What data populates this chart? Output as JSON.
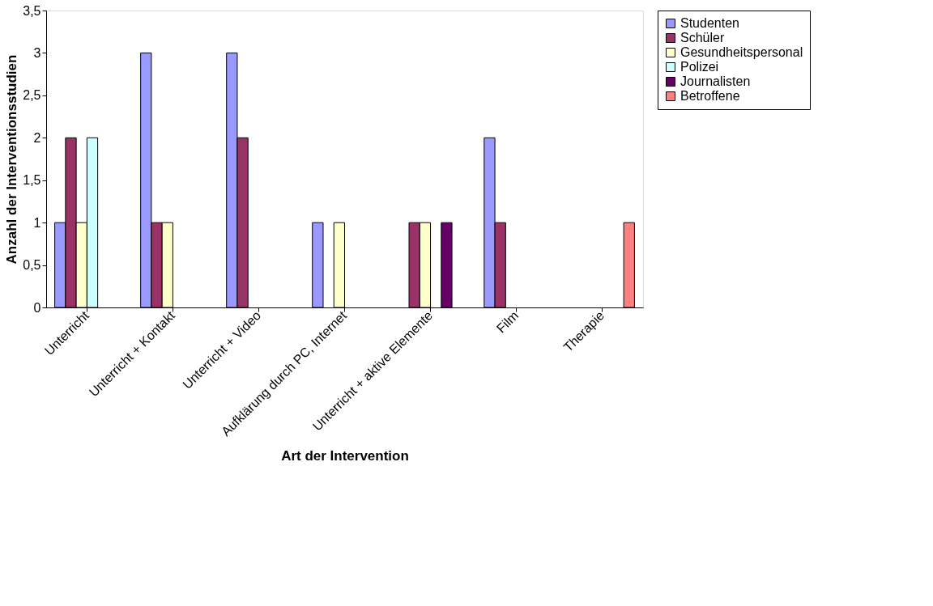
{
  "chart_data": {
    "type": "bar",
    "xlabel": "Art der Intervention",
    "ylabel": "Anzahl der Interventionsstudien",
    "categories": [
      "Unterricht",
      "Unterricht + Kontakt",
      "Unterricht + Video",
      "Aufklärung durch PC, Internet",
      "Unterricht + aktive Elemente",
      "Film",
      "Therapie"
    ],
    "series": [
      {
        "name": "Studenten",
        "color": "#9999ff",
        "values": [
          1,
          3,
          3,
          1,
          null,
          2,
          null
        ]
      },
      {
        "name": "Schüler",
        "color": "#993366",
        "values": [
          2,
          1,
          2,
          null,
          1,
          1,
          null
        ]
      },
      {
        "name": "Gesundheitspersonal",
        "color": "#ffffcc",
        "values": [
          1,
          1,
          null,
          1,
          1,
          null,
          null
        ]
      },
      {
        "name": "Polizei",
        "color": "#ccffff",
        "values": [
          2,
          null,
          null,
          null,
          null,
          null,
          null
        ]
      },
      {
        "name": "Journalisten",
        "color": "#660066",
        "values": [
          null,
          null,
          null,
          null,
          1,
          null,
          null
        ]
      },
      {
        "name": "Betroffene",
        "color": "#ff8080",
        "values": [
          null,
          null,
          null,
          null,
          null,
          null,
          1
        ]
      }
    ],
    "ylim": [
      0,
      3.5
    ],
    "yticks": [
      0,
      {
        "value": 0.5,
        "label": "0,5"
      },
      1,
      {
        "value": 1.5,
        "label": "1,5"
      },
      2,
      {
        "value": 2.5,
        "label": "2,5"
      },
      3,
      {
        "value": 3.5,
        "label": "3,5"
      }
    ],
    "grid": false,
    "legend": "right"
  }
}
